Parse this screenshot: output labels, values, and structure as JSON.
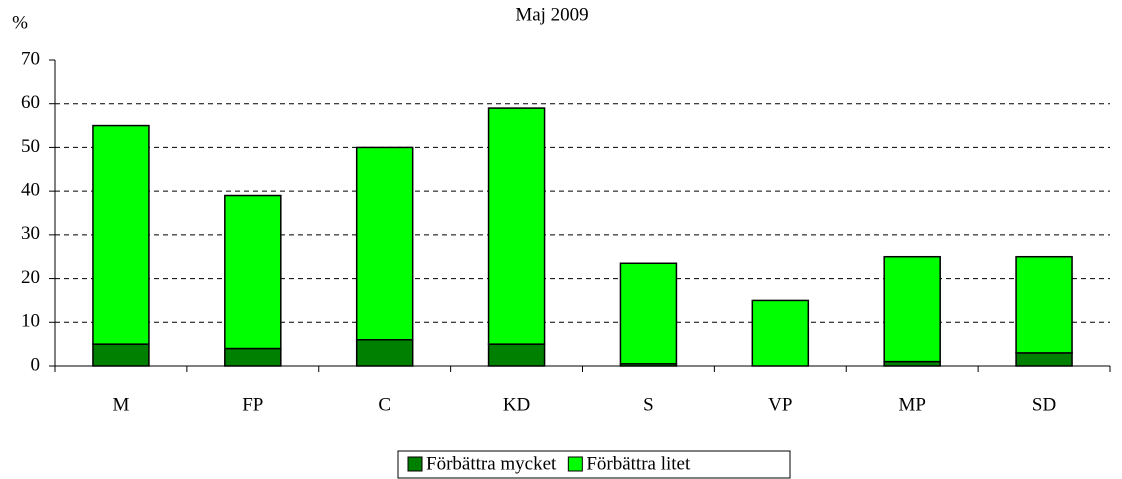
{
  "chart_data": {
    "type": "stacked_bar",
    "title": "Maj 2009",
    "y_label": "%",
    "categories": [
      "M",
      "FP",
      "C",
      "KD",
      "S",
      "VP",
      "MP",
      "SD"
    ],
    "series": [
      {
        "name": "Förbättra mycket",
        "color": "#008000",
        "values": [
          5,
          4,
          6,
          5,
          0.5,
          0,
          1,
          3
        ]
      },
      {
        "name": "Förbättra litet",
        "color": "#00ff00",
        "values": [
          50,
          35,
          44,
          54,
          23,
          15,
          24,
          22
        ]
      }
    ],
    "ylim": [
      0,
      70
    ],
    "yticks": [
      0,
      10,
      20,
      30,
      40,
      50,
      60,
      70
    ],
    "grid": true,
    "legend": "bottom"
  }
}
